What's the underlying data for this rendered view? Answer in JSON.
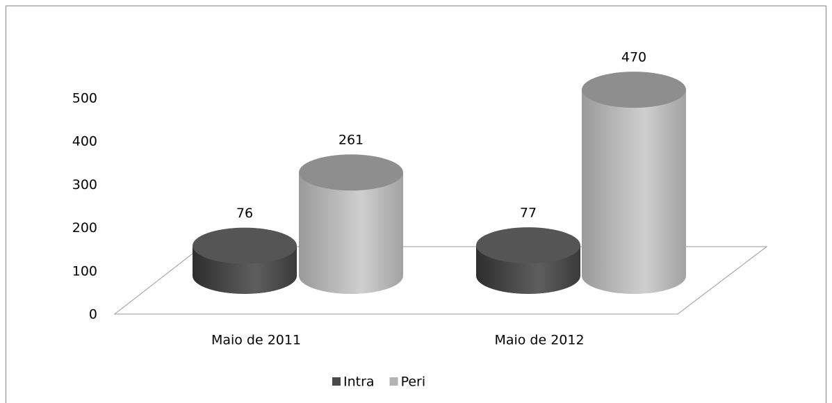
{
  "chart_data": {
    "type": "bar3d",
    "categories": [
      "Maio de 2011",
      "Maio de 2012"
    ],
    "series": [
      {
        "name": "Intra",
        "color": "#4a4a4a",
        "values": [
          76,
          77
        ]
      },
      {
        "name": "Peri",
        "color": "#b4b4b4",
        "values": [
          261,
          470
        ]
      }
    ],
    "ylim": [
      0,
      500
    ],
    "yticks": [
      0,
      100,
      200,
      300,
      400,
      500
    ],
    "legend": "bottom"
  }
}
